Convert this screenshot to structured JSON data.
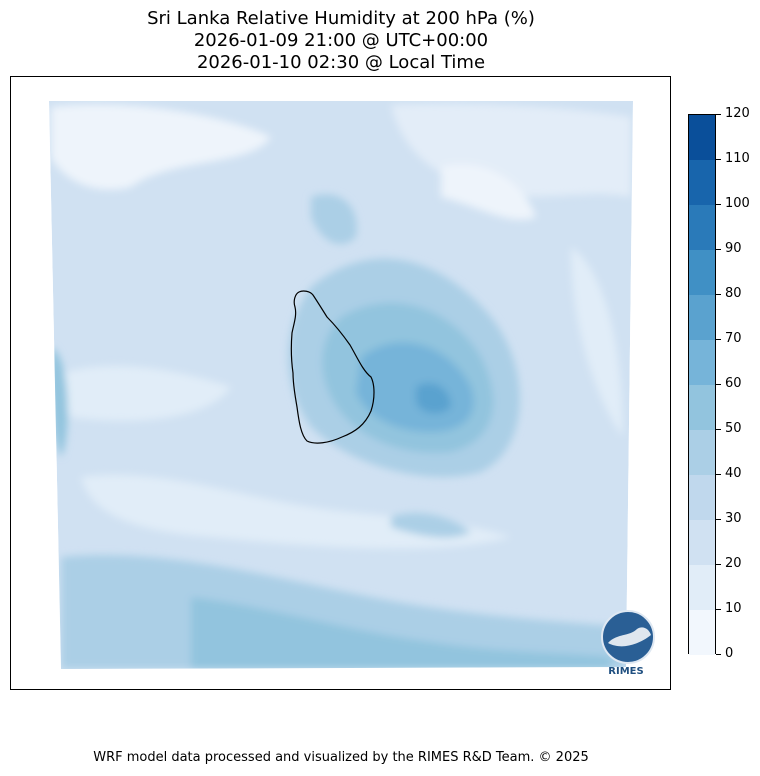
{
  "title": {
    "line1": "Sri Lanka Relative Humidity at 200 hPa (%)",
    "line2": "2026-01-09 21:00 @ UTC+00:00",
    "line3": "2026-01-10 02:30 @ Local Time"
  },
  "colorbar": {
    "ticks": [
      "0",
      "10",
      "20",
      "30",
      "40",
      "50",
      "60",
      "70",
      "80",
      "90",
      "100",
      "110",
      "120"
    ],
    "colors": [
      "#f2f7fd",
      "#e1edf8",
      "#d0e1f2",
      "#c0d8ed",
      "#abcfe6",
      "#92c4de",
      "#76b4d9",
      "#5aa2cf",
      "#4090c5",
      "#2a7ab9",
      "#1865ac",
      "#0a4f9a",
      "#083b7c"
    ]
  },
  "logo": {
    "text": "RIMES"
  },
  "footer": "WRF model data processed and visualized by the RIMES R&D Team. © 2025"
}
